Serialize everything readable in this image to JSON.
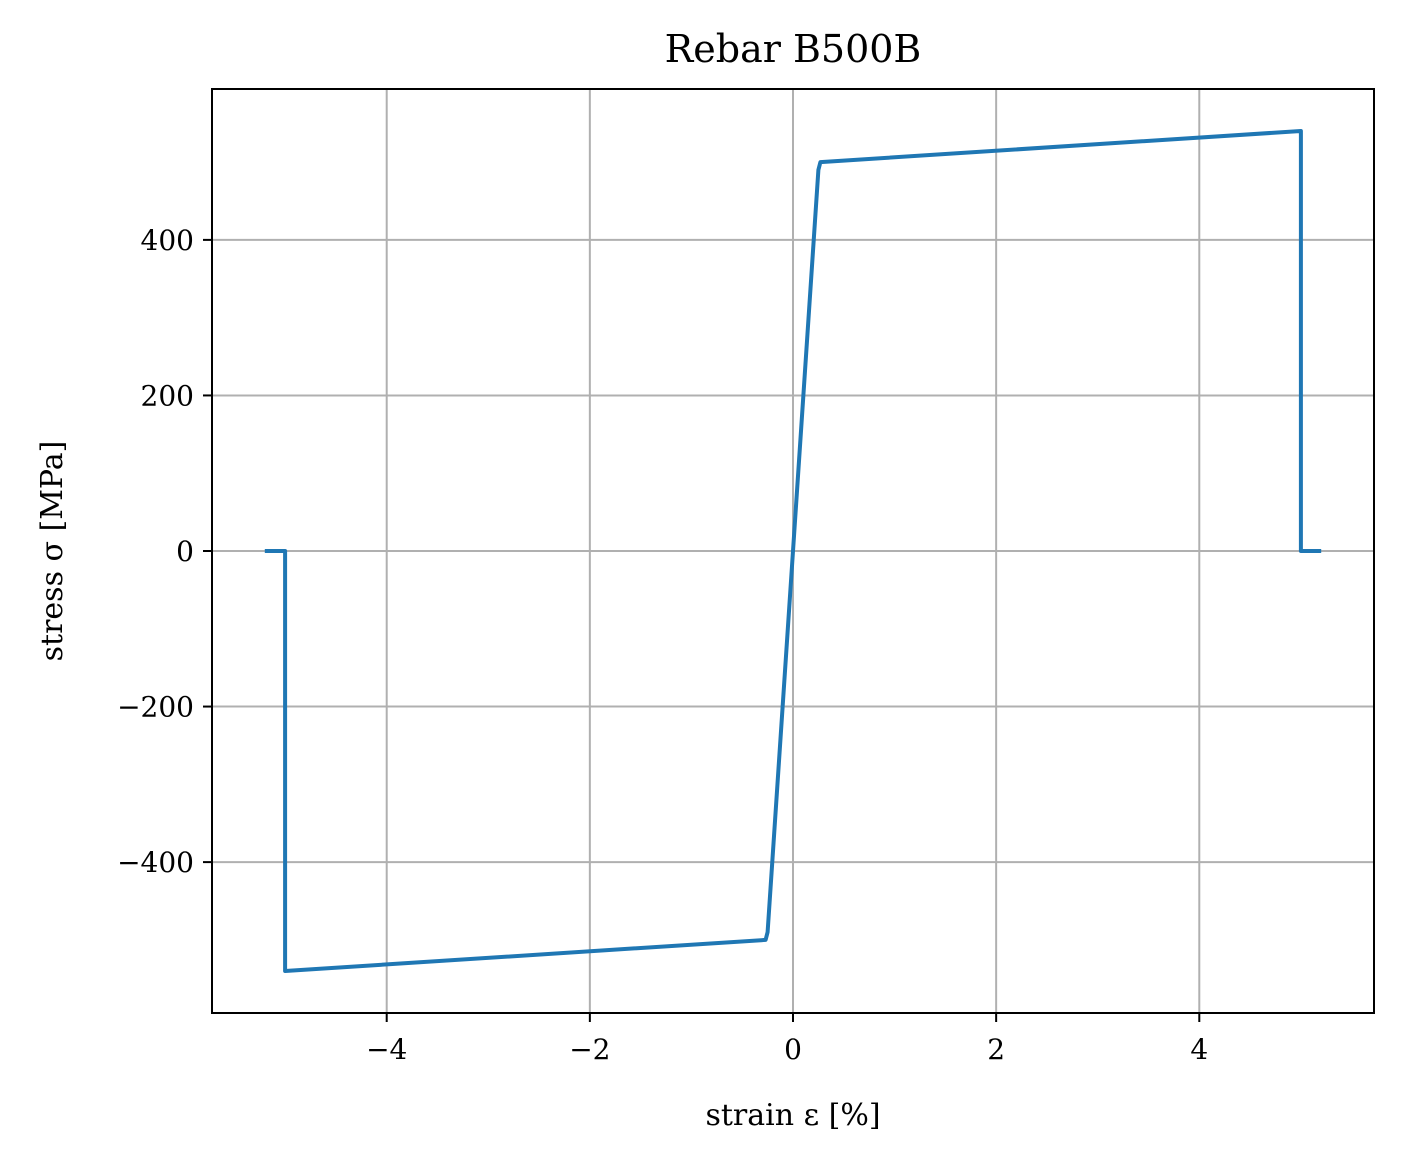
{
  "chart_data": {
    "type": "line",
    "title": "Rebar B500B",
    "xlabel": "strain ε [%]",
    "ylabel": "stress σ [MPa]",
    "xlim": [
      -5.72,
      5.72
    ],
    "ylim": [
      -594,
      594
    ],
    "xticks": [
      -4,
      -2,
      0,
      2,
      4
    ],
    "xtick_labels": [
      "−4",
      "−2",
      "0",
      "2",
      "4"
    ],
    "yticks": [
      -400,
      -200,
      0,
      200,
      400
    ],
    "ytick_labels": [
      "−400",
      "−200",
      "0",
      "200",
      "400"
    ],
    "grid": true,
    "line_color": "#1f77b4",
    "grid_color": "#b0b0b0",
    "series": [
      {
        "x": [
          -5.2,
          -5.0,
          -5.0,
          -0.27,
          -0.25,
          0.0,
          0.25,
          0.27,
          5.0,
          5.0,
          5.2
        ],
        "y": [
          0,
          0,
          -540,
          -500,
          -490,
          0,
          490,
          500,
          540,
          0,
          0
        ]
      }
    ]
  }
}
